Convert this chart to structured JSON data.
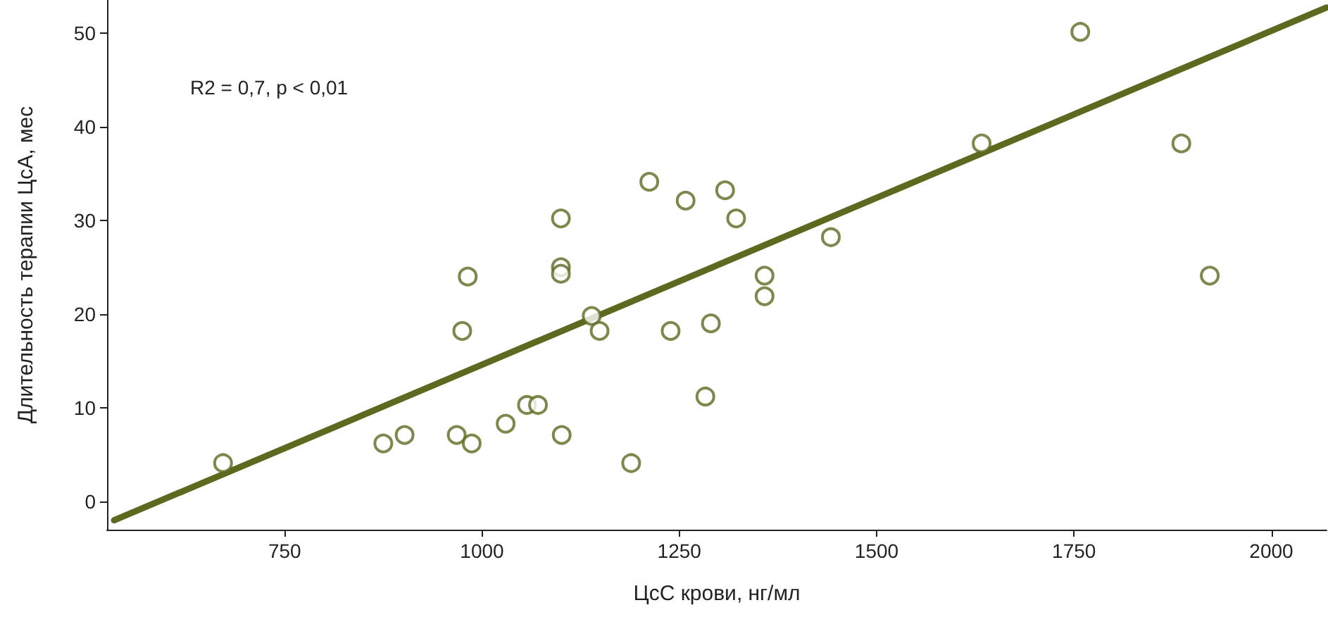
{
  "chart_data": {
    "type": "scatter",
    "xlabel": "ЦсС крови, нг/мл",
    "ylabel": "Длительность терапии ЦсА, мес",
    "annotations": [
      "R2 = 0,7, p < 0,01"
    ],
    "xlim": [
      525,
      2070
    ],
    "xticks": [
      750,
      1000,
      1250,
      1500,
      1750,
      2000
    ],
    "ylim": [
      -3,
      53.5
    ],
    "yticks": [
      0,
      10,
      20,
      30,
      40,
      50
    ],
    "grid": false,
    "marker": "circle",
    "series": [
      {
        "color": "#5b6a1f",
        "x": [
          672,
          875,
          902,
          968,
          975,
          982,
          987,
          1030,
          1057,
          1071,
          1100,
          1100,
          1100,
          1101,
          1139,
          1149,
          1189,
          1212,
          1239,
          1258,
          1283,
          1290,
          1308,
          1322,
          1358,
          1358,
          1442,
          1633,
          1758,
          1886,
          1922
        ],
        "values": [
          4.1,
          6.2,
          7.1,
          7.1,
          18.2,
          24,
          6.2,
          8.3,
          10.3,
          10.3,
          30.2,
          25,
          24.3,
          7.1,
          19.8,
          18.2,
          4.1,
          34.1,
          18.2,
          32.1,
          11.2,
          19,
          33.2,
          30.2,
          24.1,
          21.9,
          28.2,
          38.2,
          50.1,
          38.2,
          24.1
        ]
      },
      {
        "type": "line",
        "color": "#5b6a1f",
        "marker": "none",
        "line_style": "solid",
        "x": [
          534,
          2070
        ],
        "values": [
          -2,
          52.7
        ]
      }
    ]
  }
}
